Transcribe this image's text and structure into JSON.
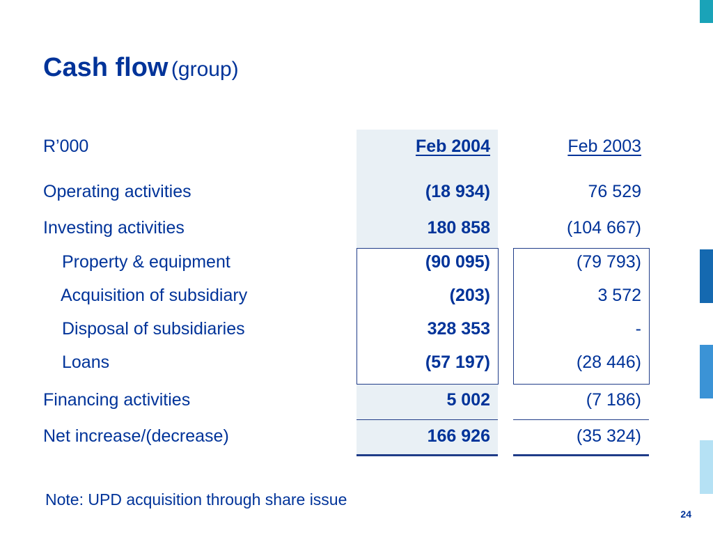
{
  "title": {
    "main": "Cash flow",
    "sub": "(group)"
  },
  "table": {
    "unit_label": "R’000",
    "col_current": "Feb 2004",
    "col_prior": "Feb 2003",
    "rows": [
      {
        "label": "Operating activities",
        "current": "(18 934)",
        "prior": "76 529"
      },
      {
        "label": "Investing activities",
        "current": "180 858",
        "prior": "(104 667)"
      },
      {
        "label": "Property & equipment",
        "current": "(90 095)",
        "prior": "(79 793)"
      },
      {
        "label": "Acquisition of subsidiary",
        "current": "(203)",
        "prior": "3 572"
      },
      {
        "label": "Disposal of subsidiaries",
        "current": "328 353",
        "prior": "-"
      },
      {
        "label": "Loans",
        "current": "(57 197)",
        "prior": "(28 446)"
      },
      {
        "label": "Financing activities",
        "current": "5 002",
        "prior": "(7 186)"
      },
      {
        "label": "Net increase/(decrease)",
        "current": "166 926",
        "prior": "(35 324)"
      }
    ]
  },
  "note": "Note: UPD acquisition through share issue",
  "page_number": "24",
  "colors": {
    "text": "#003399",
    "shade": "#e9f0f5",
    "accent_teal": "#1aa3b8",
    "accent_blue": "#1569b0",
    "accent_mid": "#3b93d6",
    "accent_light": "#b5e1f4"
  }
}
